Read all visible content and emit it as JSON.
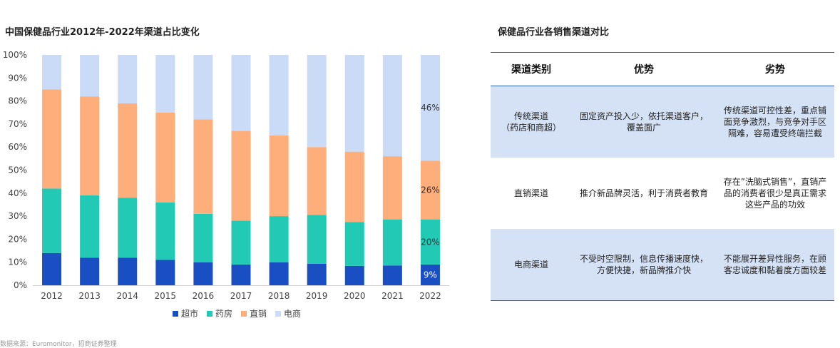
{
  "chart_title": "中国保健品行业2012年-2022年渠道占比变化",
  "table_title": "保健品行业各销售渠道对比",
  "source": "数据来源：Euromonitor，招商证券整理",
  "chart_data": {
    "type": "bar",
    "stacked": true,
    "title": "中国保健品行业2012年-2022年渠道占比变化",
    "categories": [
      "2012",
      "2013",
      "2014",
      "2015",
      "2016",
      "2017",
      "2018",
      "2019",
      "2020",
      "2021",
      "2022"
    ],
    "ylim": [
      0,
      100
    ],
    "yticks": [
      "0%",
      "10%",
      "20%",
      "30%",
      "40%",
      "50%",
      "60%",
      "70%",
      "80%",
      "90%",
      "100%"
    ],
    "series": [
      {
        "name": "超市",
        "color": "#1a4fc4",
        "values": [
          14,
          12,
          12,
          11,
          10,
          9,
          10,
          9.3,
          8.4,
          8.6,
          9
        ]
      },
      {
        "name": "药房",
        "color": "#22c9b5",
        "values": [
          28,
          27,
          26,
          25,
          21,
          19,
          20,
          21.2,
          19,
          20,
          19.6
        ]
      },
      {
        "name": "直销",
        "color": "#fdae7b",
        "values": [
          43,
          43,
          41,
          39,
          41,
          39,
          35,
          29.5,
          30.6,
          27.4,
          25.5
        ]
      },
      {
        "name": "电商",
        "color": "#c9dbf7",
        "values": [
          15,
          18,
          21,
          25,
          28,
          33,
          35,
          40,
          42,
          44,
          45.9
        ]
      }
    ],
    "data_labels": [
      {
        "series": "超市",
        "category": "2022",
        "text": "9%",
        "color": "#ffffff"
      },
      {
        "series": "药房",
        "category": "2022",
        "text": "20%",
        "color": "#333333"
      },
      {
        "series": "直销",
        "category": "2022",
        "text": "26%",
        "color": "#333333"
      },
      {
        "series": "电商",
        "category": "2022",
        "text": "46%",
        "color": "#333333"
      }
    ],
    "legend_position": "bottom"
  },
  "table": {
    "headers": [
      "渠道类别",
      "优势",
      "劣势"
    ],
    "rows": [
      {
        "type": "传统渠道\n（药店和商超）",
        "adv": "固定资产投入少，依托渠道客户，覆盖面广",
        "dis": "传统渠道可控性差，重点铺面竞争激烈，与竞争对手区隔难，容易遭受终端拦截"
      },
      {
        "type": "直销渠道",
        "adv": "推介新品牌灵活，利于消费者教育",
        "dis": "存在”洗脑式销售”，直销产品的消费者很少是真正需求这些产品的功效"
      },
      {
        "type": "电商渠道",
        "adv": "不受时空限制，信息传播速度快，方便快捷，新品牌推介快",
        "dis": "不能展开差异性服务，在顾客忠诚度和黏着度方面较差"
      }
    ]
  }
}
